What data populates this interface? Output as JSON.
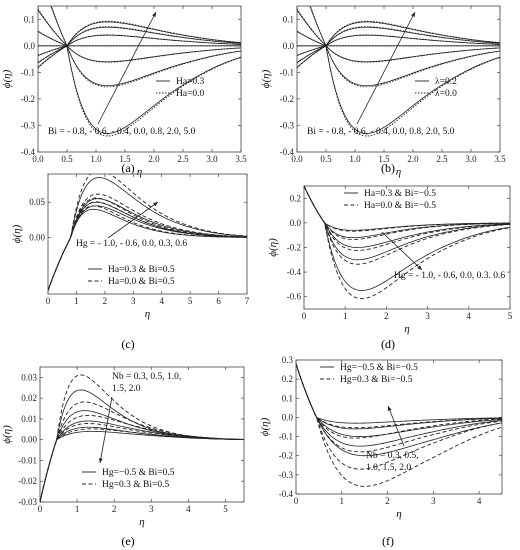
{
  "chart_data": [
    {
      "id": "a",
      "type": "line",
      "panel_label": "(a)",
      "xlabel": "η",
      "ylabel": "ϕ(η)",
      "xlim": [
        0,
        3.5
      ],
      "ylim": [
        -0.4,
        0.15
      ],
      "xticks": [
        "0.0",
        "0.5",
        "1.0",
        "1.5",
        "2.0",
        "2.5",
        "3.0",
        "3.5"
      ],
      "yticks": [
        "-0.4",
        "-0.3",
        "-0.2",
        "-0.1",
        "0.0",
        "0.1"
      ],
      "xtick_vals": [
        0,
        0.5,
        1,
        1.5,
        2,
        2.5,
        3,
        3.5
      ],
      "ytick_vals": [
        -0.4,
        -0.3,
        -0.2,
        -0.1,
        0,
        0.1
      ],
      "grid": false,
      "legend": [
        {
          "label": "Ha=0.3",
          "style": "solid"
        },
        {
          "label": "Ha=0.0",
          "style": "dotted"
        }
      ],
      "annotation": "Bi = - 0.8, - 0.6, - 0.4, 0.0, 0.8, 2.0, 5.0",
      "series_param": [
        -0.8,
        -0.6,
        -0.4,
        0.0,
        0.8,
        2.0,
        5.0
      ],
      "curve_model": {
        "x0": 0.5,
        "tail": 3.6,
        "peaks": [
          0.09,
          0.07,
          0.04,
          0.0,
          -0.06,
          -0.15,
          -0.33
        ],
        "peak_x": [
          1.2,
          1.2,
          1.2,
          1.2,
          1.2,
          1.2,
          1.2
        ],
        "dashed_scale": 1.03
      }
    },
    {
      "id": "b",
      "type": "line",
      "panel_label": "(b)",
      "xlabel": "η",
      "ylabel": "ϕ(η)",
      "xlim": [
        0,
        3.5
      ],
      "ylim": [
        -0.4,
        0.15
      ],
      "xticks": [
        "0.0",
        "0.5",
        "1.0",
        "1.5",
        "2.0",
        "2.5",
        "3.0",
        "3.5"
      ],
      "yticks": [
        "-0.4",
        "-0.3",
        "-0.2",
        "-0.1",
        "0.0",
        "0.1"
      ],
      "xtick_vals": [
        0,
        0.5,
        1,
        1.5,
        2,
        2.5,
        3,
        3.5
      ],
      "ytick_vals": [
        -0.4,
        -0.3,
        -0.2,
        -0.1,
        0,
        0.1
      ],
      "grid": false,
      "legend": [
        {
          "label": "λ=0.2",
          "style": "solid"
        },
        {
          "label": "λ=0.0",
          "style": "dotted"
        }
      ],
      "annotation": "Bi = - 0.8, - 0.6, - 0.4, 0.0, 0.8, 2.0, 5.0",
      "series_param": [
        -0.8,
        -0.6,
        -0.4,
        0.0,
        0.8,
        2.0,
        5.0
      ],
      "curve_model": {
        "x0": 0.5,
        "tail": 3.6,
        "peaks": [
          0.09,
          0.07,
          0.04,
          0.0,
          -0.06,
          -0.15,
          -0.33
        ],
        "peak_x": [
          1.2,
          1.2,
          1.2,
          1.2,
          1.2,
          1.2,
          1.2
        ],
        "dashed_scale": 1.03
      }
    },
    {
      "id": "c",
      "type": "line",
      "panel_label": "(c)",
      "xlabel": "η",
      "ylabel": "ϕ(η)",
      "xlim": [
        0,
        7
      ],
      "ylim": [
        -0.08,
        0.09
      ],
      "xticks": [
        "0",
        "1",
        "2",
        "3",
        "4",
        "5",
        "6",
        "7"
      ],
      "yticks": [
        "0.00",
        "0.05"
      ],
      "xtick_vals": [
        0,
        1,
        2,
        3,
        4,
        5,
        6,
        7
      ],
      "ytick_vals": [
        0,
        0.05
      ],
      "grid": false,
      "legend": [
        {
          "label": "Ha=0.3 & Bi=0.5",
          "style": "solid"
        },
        {
          "label": "Ha=0.0 & Bi=0.5",
          "style": "dashed"
        }
      ],
      "annotation": "Hg = - 1.0, - 0.6, 0.0, 0.3, 0.6",
      "series_param": [
        -1.0,
        -0.6,
        0.0,
        0.3,
        0.6
      ],
      "curve_model": {
        "start": -0.075,
        "x0": 0.8,
        "tail": 6.5,
        "peaks": [
          0.04,
          0.045,
          0.05,
          0.055,
          0.085
        ],
        "peak_x": [
          1.6,
          1.7,
          1.7,
          1.75,
          1.8
        ],
        "dashed_scale": 1.12
      }
    },
    {
      "id": "d",
      "type": "line",
      "panel_label": "(d)",
      "xlabel": "η",
      "ylabel": "ϕ(η)",
      "xlim": [
        0,
        5
      ],
      "ylim": [
        -0.7,
        0.3
      ],
      "xticks": [
        "0",
        "1",
        "2",
        "3",
        "4",
        "5"
      ],
      "yticks": [
        "-0.6",
        "-0.4",
        "-0.2",
        "0.0",
        "0.2"
      ],
      "xtick_vals": [
        0,
        1,
        2,
        3,
        4,
        5
      ],
      "ytick_vals": [
        -0.6,
        -0.4,
        -0.2,
        0,
        0.2
      ],
      "grid": false,
      "legend": [
        {
          "label": "Ha=0.3 & Bi=−0.5",
          "style": "solid"
        },
        {
          "label": "Ha=0.0 & Bi=−0.5",
          "style": "dashed"
        }
      ],
      "annotation": "Hg = - 1.0, - 0.6, 0.0, 0.3. 0.6",
      "series_param": [
        -1.0,
        -0.6,
        0.0,
        0.3,
        0.6
      ],
      "curve_model": {
        "start": 0.3,
        "x0": 0.5,
        "tail": 4.8,
        "peaks": [
          -0.06,
          -0.12,
          -0.2,
          -0.3,
          -0.55
        ],
        "peak_x": [
          1.2,
          1.2,
          1.3,
          1.3,
          1.4
        ],
        "dashed_scale": 1.12
      }
    },
    {
      "id": "e",
      "type": "line",
      "panel_label": "(e)",
      "xlabel": "η",
      "ylabel": "ϕ(η)",
      "xlim": [
        0,
        5.5
      ],
      "ylim": [
        -0.03,
        0.035
      ],
      "xticks": [
        "0",
        "1",
        "2",
        "3",
        "4",
        "5"
      ],
      "yticks": [
        "-0.03",
        "-0.02",
        "-0.01",
        "0.00",
        "0.01",
        "0.02",
        "0.03"
      ],
      "xtick_vals": [
        0,
        1,
        2,
        3,
        4,
        5
      ],
      "ytick_vals": [
        -0.03,
        -0.02,
        -0.01,
        0,
        0.01,
        0.02,
        0.03
      ],
      "grid": false,
      "legend": [
        {
          "label": "Hg=−0.5 & Bi=0.5",
          "style": "solid"
        },
        {
          "label": "Hg=0.3 & Bi=0.5",
          "style": "dashed"
        }
      ],
      "annotation": [
        "Nb = 0.3, 0.5, 1.0,",
        "1.5, 2.0"
      ],
      "series_param": [
        0.3,
        0.5,
        1.0,
        1.5,
        2.0
      ],
      "curve_model": {
        "start": -0.03,
        "x0": 0.45,
        "tail": 4.5,
        "peaks": [
          0.024,
          0.014,
          0.009,
          0.006,
          0.004
        ],
        "peak_x": [
          1.1,
          1.2,
          1.3,
          1.3,
          1.4
        ],
        "dashed_scale": 1.3
      }
    },
    {
      "id": "f",
      "type": "line",
      "panel_label": "(f)",
      "xlabel": "η",
      "ylabel": "ϕ(η)",
      "xlim": [
        0,
        4.5
      ],
      "ylim": [
        -0.4,
        0.3
      ],
      "xticks": [
        "0",
        "1",
        "2",
        "3",
        "4"
      ],
      "yticks": [
        "-0.4",
        "-0.3",
        "-0.2",
        "-0.1",
        "0.0",
        "0.1",
        "0.2",
        "0.3"
      ],
      "xtick_vals": [
        0,
        1,
        2,
        3,
        4
      ],
      "ytick_vals": [
        -0.4,
        -0.3,
        -0.2,
        -0.1,
        0,
        0.1,
        0.2,
        0.3
      ],
      "grid": false,
      "legend": [
        {
          "label": "Hg=−0.5 & Bi=−0.5",
          "style": "solid"
        },
        {
          "label": "Hg=0.3 & Bi=−0.5",
          "style": "dashed"
        }
      ],
      "annotation": [
        "Nb = 0.3, 0.5,",
        "1.0, 1.5, 2.0"
      ],
      "series_param": [
        0.3,
        0.5,
        1.0,
        1.5,
        2.0
      ],
      "curve_model": {
        "start": 0.28,
        "x0": 0.45,
        "tail": 4.2,
        "peaks": [
          -0.03,
          -0.06,
          -0.1,
          -0.15,
          -0.2
        ],
        "peak_x": [
          1.3,
          1.3,
          1.4,
          1.4,
          1.5
        ],
        "dashed_scale": 1.8
      }
    }
  ]
}
